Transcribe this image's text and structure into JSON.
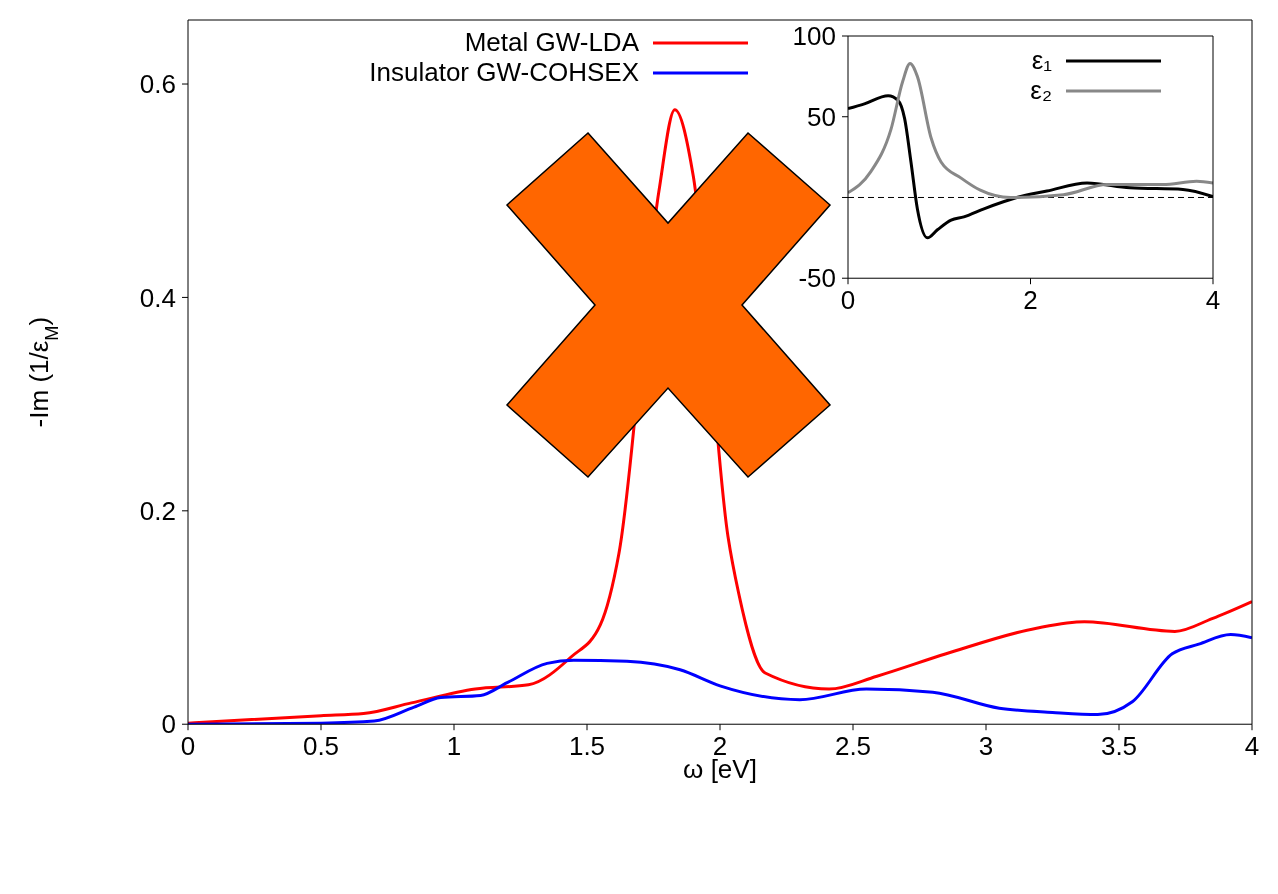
{
  "chart_data": [
    {
      "type": "line",
      "xlabel": "ω [eV]",
      "ylabel": "-Im (1/ε$_{M}$)",
      "xlim": [
        0,
        4
      ],
      "ylim": [
        0,
        0.66
      ],
      "xticks": [
        0,
        0.5,
        1,
        1.5,
        2,
        2.5,
        3,
        3.5,
        4
      ],
      "yticks": [
        0,
        0.2,
        0.4,
        0.6
      ],
      "grid": false,
      "legend": "top",
      "marker": "none",
      "line_style": "solid",
      "series": [
        {
          "name": "Metal GW-LDA",
          "color": "#ff0000",
          "x": [
            0,
            0.5,
            0.66,
            0.84,
            1.08,
            1.28,
            1.44,
            1.55,
            1.62,
            1.69,
            1.77,
            1.83,
            1.9,
            1.97,
            2.03,
            2.07,
            2.17,
            2.41,
            2.59,
            2.85,
            3.19,
            3.37,
            3.71,
            3.85,
            4
          ],
          "values": [
            0.001,
            0.008,
            0.01,
            0.02,
            0.033,
            0.037,
            0.063,
            0.093,
            0.16,
            null,
            0.499,
            0.576,
            0.513,
            null,
            0.176,
            0.123,
            0.048,
            0.033,
            0.045,
            0.066,
            0.09,
            0.096,
            0.087,
            0.099,
            0.115
          ]
        },
        {
          "name": "Insulator GW-COHSEX",
          "color": "#0000ff",
          "x": [
            0,
            0.5,
            0.7,
            0.85,
            0.95,
            1.1,
            1.2,
            1.35,
            1.45,
            1.65,
            1.85,
            2,
            2.3,
            2.55,
            2.8,
            3.05,
            3.25,
            3.42,
            3.55,
            3.7,
            3.8,
            3.92,
            4
          ],
          "values": [
            0,
            0.001,
            0.003,
            0.016,
            0.025,
            0.027,
            0.039,
            0.057,
            0.06,
            0.059,
            0.051,
            0.036,
            0.023,
            0.033,
            0.03,
            0.015,
            0.011,
            0.009,
            0.021,
            0.066,
            0.075,
            0.084,
            0.081
          ]
        }
      ]
    },
    {
      "type": "line",
      "xlim": [
        0,
        4
      ],
      "ylim": [
        -50,
        100
      ],
      "xticks": [
        0,
        2,
        4
      ],
      "yticks": [
        -50,
        {
          "value": 0,
          "label": null
        },
        50,
        100
      ],
      "grid": false,
      "legend": "top right",
      "marker": "none",
      "line_style": "solid",
      "ref_lines": [
        {
          "axis": "y",
          "value": 0,
          "color": "#000000",
          "line_style": "dashed"
        }
      ],
      "series": [
        {
          "name": "ε₁",
          "color": "#000000",
          "x": [
            0,
            0.18,
            0.44,
            0.55,
            0.62,
            0.69,
            0.76,
            0.87,
            0.98,
            1.13,
            1.27,
            1.49,
            1.85,
            2.18,
            2.62,
            3.09,
            3.67,
            4
          ],
          "values": [
            55,
            58,
            63,
            60,
            49,
            22,
            -7,
            -25,
            -20,
            -14,
            -12,
            -7,
            0,
            4,
            9,
            6,
            5,
            0.5
          ]
        },
        {
          "name": "ε₂",
          "color": "#888888",
          "x": [
            0,
            0.25,
            0.47,
            0.6,
            0.68,
            0.76,
            0.91,
            1.02,
            1.24,
            1.45,
            1.78,
            2.36,
            2.84,
            3.45,
            3.82,
            4
          ],
          "values": [
            3,
            16,
            42,
            72,
            83,
            75,
            37,
            22,
            12,
            4.5,
            0,
            1.7,
            8,
            8,
            10,
            9
          ]
        }
      ]
    }
  ]
}
